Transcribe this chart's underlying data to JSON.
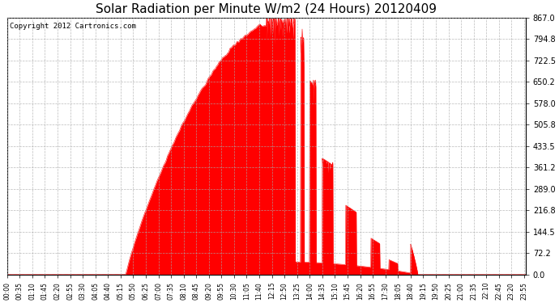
{
  "title": "Solar Radiation per Minute W/m2 (24 Hours) 20120409",
  "copyright_text": "Copyright 2012 Cartronics.com",
  "fill_color": "#FF0000",
  "line_color": "#FF0000",
  "background_color": "#FFFFFF",
  "plot_bg_color": "#FFFFFF",
  "grid_color": "#AAAAAA",
  "dashed_line_color": "#FF0000",
  "ylim": [
    0.0,
    867.0
  ],
  "yticks": [
    0.0,
    72.2,
    144.5,
    216.8,
    289.0,
    361.2,
    433.5,
    505.8,
    578.0,
    650.2,
    722.5,
    794.8,
    867.0
  ],
  "ytick_labels": [
    "0.0",
    "72.2",
    "144.5",
    "216.8",
    "289.0",
    "361.2",
    "433.5",
    "505.8",
    "578.0",
    "650.2",
    "722.5",
    "794.8",
    "867.0"
  ],
  "total_minutes": 1440,
  "sunrise_minute": 330,
  "sunset_minute": 1140,
  "peak_minute": 760,
  "peak_value": 867.0,
  "xtick_step": 35
}
